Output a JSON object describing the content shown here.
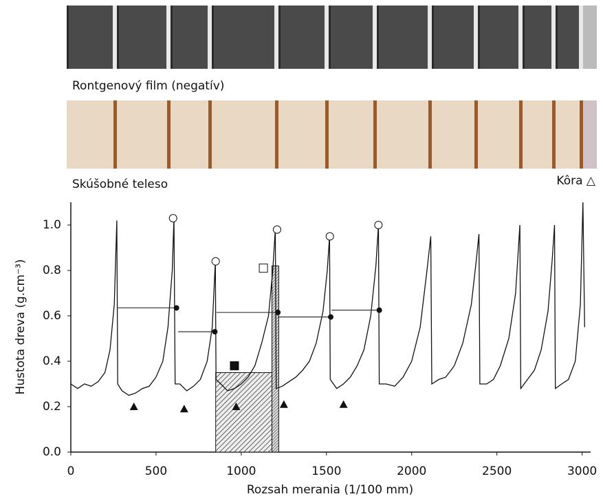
{
  "chart_data": {
    "type": "line",
    "caption_xray": "Rontgenový film (negatív)",
    "caption_sample": "Skúšobné teleso",
    "caption_bark": "Kôra △",
    "ylabel": "Hustota dreva (g.cm⁻³)",
    "xlabel": "Rozsah merania (1/100 mm)",
    "color": "#111111",
    "xlim": [
      0,
      3050
    ],
    "ylim": [
      0,
      1.1
    ],
    "xticks": [
      0,
      500,
      1000,
      1500,
      2000,
      2500,
      3000
    ],
    "yticks": [
      {
        "value": 0,
        "label": "0.0"
      },
      0.2,
      0.4,
      0.6,
      0.8,
      {
        "value": 1,
        "label": "1.0"
      }
    ],
    "x": [
      0,
      40,
      80,
      120,
      160,
      200,
      230,
      255,
      270,
      275,
      300,
      340,
      380,
      420,
      460,
      500,
      540,
      570,
      595,
      605,
      612,
      640,
      680,
      720,
      760,
      800,
      830,
      848,
      852,
      880,
      920,
      960,
      1000,
      1040,
      1080,
      1120,
      1160,
      1185,
      1200,
      1205,
      1240,
      1280,
      1320,
      1360,
      1400,
      1440,
      1480,
      1505,
      1518,
      1522,
      1560,
      1600,
      1640,
      1680,
      1720,
      1760,
      1790,
      1805,
      1810,
      1850,
      1900,
      1950,
      2000,
      2050,
      2090,
      2112,
      2118,
      2160,
      2200,
      2250,
      2300,
      2350,
      2380,
      2395,
      2400,
      2440,
      2480,
      2520,
      2570,
      2610,
      2635,
      2640,
      2680,
      2720,
      2760,
      2800,
      2825,
      2838,
      2843,
      2880,
      2920,
      2960,
      2990,
      3005,
      3015
    ],
    "values": [
      0.3,
      0.28,
      0.3,
      0.29,
      0.31,
      0.35,
      0.45,
      0.65,
      1.02,
      0.3,
      0.27,
      0.25,
      0.26,
      0.28,
      0.29,
      0.33,
      0.4,
      0.55,
      0.8,
      1.03,
      0.3,
      0.3,
      0.27,
      0.29,
      0.32,
      0.4,
      0.55,
      0.84,
      0.32,
      0.3,
      0.27,
      0.28,
      0.3,
      0.33,
      0.38,
      0.48,
      0.6,
      0.8,
      0.98,
      0.28,
      0.29,
      0.31,
      0.33,
      0.36,
      0.4,
      0.48,
      0.62,
      0.8,
      0.95,
      0.32,
      0.28,
      0.3,
      0.33,
      0.38,
      0.45,
      0.6,
      0.82,
      1.0,
      0.3,
      0.3,
      0.29,
      0.33,
      0.4,
      0.55,
      0.8,
      0.95,
      0.3,
      0.32,
      0.33,
      0.38,
      0.48,
      0.65,
      0.85,
      0.96,
      0.3,
      0.3,
      0.32,
      0.38,
      0.5,
      0.7,
      1.0,
      0.28,
      0.32,
      0.36,
      0.45,
      0.62,
      0.85,
      1.0,
      0.28,
      0.3,
      0.32,
      0.4,
      0.65,
      1.1,
      0.55
    ],
    "annotations": {
      "peaks": {
        "x": [
          600,
          850,
          1210,
          1520,
          1805
        ],
        "y": [
          1.03,
          0.84,
          0.98,
          0.95,
          1.0
        ]
      },
      "minima": {
        "x": [
          370,
          665,
          970,
          1250,
          1600
        ],
        "y": [
          0.2,
          0.19,
          0.2,
          0.21,
          0.21
        ]
      },
      "spans": {
        "x0": [
          270,
          630,
          855,
          1215,
          1530
        ],
        "x1": [
          620,
          845,
          1215,
          1525,
          1810
        ],
        "y": [
          0.635,
          0.53,
          0.615,
          0.595,
          0.625
        ]
      },
      "boxes": {
        "x0": [
          850,
          1180
        ],
        "x1": [
          1180,
          1220
        ],
        "y": [
          0.35,
          0.82
        ]
      },
      "squares": {
        "x": [
          960,
          1130
        ],
        "y": [
          0.38,
          0.81
        ],
        "filled": [
          true,
          false
        ]
      }
    }
  }
}
